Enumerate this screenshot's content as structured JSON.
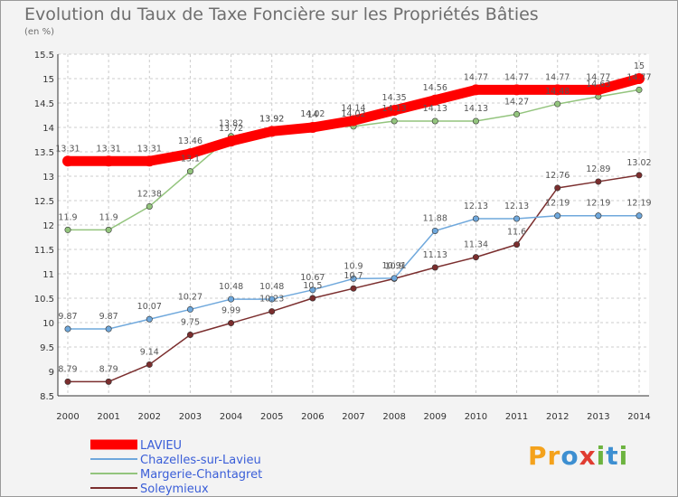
{
  "chart_data": {
    "type": "line",
    "title": "Evolution du Taux de Taxe Foncière sur les Propriétés Bâties",
    "subtitle": "(en %)",
    "xlabel": "",
    "ylabel": "",
    "ylim": [
      8.5,
      15.5
    ],
    "yticks": [
      "8.5",
      "9",
      "9.5",
      "10",
      "10.5",
      "11",
      "11.5",
      "12",
      "12.5",
      "13",
      "13.5",
      "14",
      "14.5",
      "15",
      "15.5"
    ],
    "x": [
      "2000",
      "2001",
      "2002",
      "2003",
      "2004",
      "2005",
      "2006",
      "2007",
      "2008",
      "2009",
      "2010",
      "2011",
      "2012",
      "2013",
      "2014"
    ],
    "grid": true,
    "legend_position": "bottom-left",
    "series": [
      {
        "name": "LAVIEU",
        "color": "#ff0000",
        "values": [
          13.31,
          13.31,
          13.31,
          13.46,
          13.72,
          13.92,
          14.0,
          14.14,
          14.35,
          14.56,
          14.77,
          14.77,
          14.77,
          14.77,
          15
        ],
        "labels": [
          "13.31",
          "13.31",
          "13.31",
          "13.46",
          "13.72",
          "13.92",
          "14",
          "14.14",
          "14.35",
          "14.56",
          "14.77",
          "14.77",
          "14.77",
          "14.77",
          "15"
        ]
      },
      {
        "name": "Chazelles-sur-Lavieu",
        "color": "#6fa8dc",
        "values": [
          9.87,
          9.87,
          10.07,
          10.27,
          10.48,
          10.48,
          10.67,
          10.9,
          10.91,
          11.88,
          12.13,
          12.13,
          12.19,
          12.19,
          12.19
        ],
        "labels": [
          "9.87",
          "9.87",
          "10.07",
          "10.27",
          "10.48",
          "10.48",
          "10.67",
          "10.9",
          "10.91",
          "11.88",
          "12.13",
          "12.13",
          "12.19",
          "12.19",
          "12.19"
        ]
      },
      {
        "name": "Margerie-Chantagret",
        "color": "#93c47d",
        "values": [
          11.9,
          11.9,
          12.38,
          13.1,
          13.82,
          13.92,
          14.02,
          14.02,
          14.13,
          14.13,
          14.13,
          14.27,
          14.48,
          14.63,
          14.77
        ],
        "labels": [
          "11.9",
          "11.9",
          "12.38",
          "13.1",
          "13.82",
          "13.92",
          "14.02",
          "14.02",
          "14.13",
          "14.13",
          "14.13",
          "14.27",
          "14.48",
          "14.63",
          "14.77"
        ]
      },
      {
        "name": "Soleymieux",
        "color": "#7b2e2e",
        "values": [
          8.79,
          8.79,
          9.14,
          9.75,
          9.99,
          10.23,
          10.5,
          10.7,
          10.9,
          11.13,
          11.34,
          11.6,
          12.76,
          12.89,
          13.02
        ],
        "labels": [
          "8.79",
          "8.79",
          "9.14",
          "9.75",
          "9.99",
          "10.23",
          "10.5",
          "10.7",
          "10.9",
          "11.13",
          "11.34",
          "11.6",
          "12.76",
          "12.89",
          "13.02"
        ]
      }
    ]
  },
  "logo": {
    "text": "Proxiti",
    "letters": [
      "P",
      "r",
      "o",
      "x",
      "i",
      "t",
      "i"
    ],
    "colors": [
      "#f4a21c",
      "#f4a21c",
      "#3d8fd1",
      "#e03c31",
      "#6cb33f",
      "#3d8fd1",
      "#6cb33f"
    ]
  }
}
